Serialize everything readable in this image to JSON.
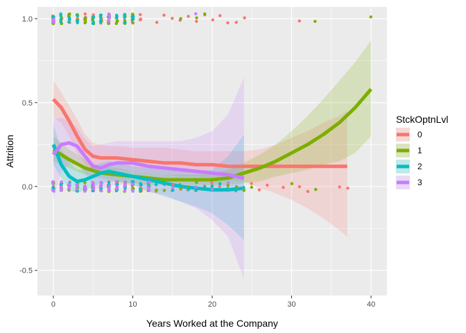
{
  "chart_data": {
    "type": "scatter",
    "xlabel": "Years Worked at the Company",
    "ylabel": "Attrition",
    "xlim": [
      -2,
      42
    ],
    "ylim": [
      -0.65,
      1.07
    ],
    "x_ticks": [
      0,
      10,
      20,
      30,
      40
    ],
    "y_ticks": [
      -0.5,
      0.0,
      0.5,
      1.0
    ],
    "x_tick_labels": [
      "0",
      "10",
      "20",
      "30",
      "40"
    ],
    "y_tick_labels": [
      "-0.5",
      "0.0",
      "0.5",
      "1.0"
    ],
    "grid": true,
    "background": "#EBEBEB",
    "legend": {
      "title": "StckOptnLvl",
      "position": "right",
      "entries": [
        "0",
        "1",
        "2",
        "3"
      ]
    },
    "series": [
      {
        "name": "0",
        "color": "#F8766D",
        "points_y1": [
          0,
          1,
          2,
          3,
          4,
          5,
          6,
          7,
          8,
          9,
          10,
          11,
          13,
          14,
          15,
          16,
          17,
          18,
          19,
          20,
          21,
          22,
          23,
          24,
          31
        ],
        "points_y0": [
          0,
          1,
          2,
          3,
          4,
          5,
          6,
          7,
          8,
          9,
          10,
          11,
          12,
          13,
          14,
          15,
          16,
          17,
          18,
          19,
          20,
          21,
          22,
          23,
          24,
          25,
          26,
          27,
          29,
          31,
          32,
          36,
          37
        ],
        "smooth_x": [
          0,
          1,
          2,
          3,
          4,
          5,
          6,
          7,
          8,
          10,
          12,
          14,
          16,
          18,
          20,
          22,
          24,
          26,
          28,
          30,
          32,
          34,
          36,
          37
        ],
        "smooth_y": [
          0.52,
          0.47,
          0.39,
          0.3,
          0.22,
          0.18,
          0.17,
          0.17,
          0.17,
          0.16,
          0.15,
          0.14,
          0.14,
          0.13,
          0.13,
          0.12,
          0.12,
          0.12,
          0.12,
          0.12,
          0.12,
          0.12,
          0.12,
          0.12
        ],
        "ci_upper": [
          0.63,
          0.56,
          0.48,
          0.4,
          0.31,
          0.26,
          0.25,
          0.24,
          0.24,
          0.23,
          0.23,
          0.23,
          0.22,
          0.21,
          0.21,
          0.21,
          0.21,
          0.22,
          0.25,
          0.29,
          0.33,
          0.38,
          0.42,
          0.45
        ],
        "ci_lower": [
          0.41,
          0.38,
          0.3,
          0.2,
          0.13,
          0.1,
          0.09,
          0.1,
          0.1,
          0.09,
          0.08,
          0.07,
          0.06,
          0.06,
          0.05,
          0.04,
          0.03,
          -0.01,
          -0.04,
          -0.08,
          -0.13,
          -0.19,
          -0.26,
          -0.3
        ]
      },
      {
        "name": "1",
        "color": "#7CAE00",
        "points_y1": [
          0,
          1,
          2,
          3,
          4,
          5,
          6,
          7,
          8,
          9,
          10,
          16,
          18,
          19,
          33,
          40
        ],
        "points_y0": [
          0,
          1,
          2,
          3,
          4,
          5,
          6,
          7,
          8,
          9,
          10,
          11,
          12,
          13,
          14,
          15,
          16,
          17,
          18,
          19,
          20,
          21,
          22,
          23,
          24,
          25,
          30,
          33
        ],
        "smooth_x": [
          0,
          2,
          4,
          6,
          8,
          10,
          12,
          14,
          16,
          18,
          20,
          22,
          24,
          26,
          28,
          30,
          32,
          34,
          36,
          38,
          40
        ],
        "smooth_y": [
          0.22,
          0.16,
          0.11,
          0.08,
          0.07,
          0.06,
          0.05,
          0.04,
          0.04,
          0.04,
          0.04,
          0.05,
          0.08,
          0.11,
          0.15,
          0.2,
          0.25,
          0.31,
          0.38,
          0.47,
          0.58
        ],
        "ci_upper": [
          0.3,
          0.22,
          0.16,
          0.12,
          0.11,
          0.09,
          0.08,
          0.07,
          0.07,
          0.07,
          0.08,
          0.1,
          0.14,
          0.19,
          0.25,
          0.33,
          0.42,
          0.52,
          0.63,
          0.74,
          0.87
        ],
        "ci_lower": [
          0.15,
          0.11,
          0.07,
          0.05,
          0.03,
          0.02,
          0.01,
          0.01,
          0.01,
          0.01,
          0.01,
          0.01,
          0.02,
          0.03,
          0.06,
          0.08,
          0.1,
          0.13,
          0.15,
          0.2,
          0.3
        ]
      },
      {
        "name": "2",
        "color": "#00BFC4",
        "points_y1": [
          0,
          1,
          2,
          3,
          5,
          6,
          7,
          8,
          9,
          10
        ],
        "points_y0": [
          0,
          1,
          2,
          3,
          4,
          5,
          6,
          7,
          8,
          9,
          10,
          11,
          12,
          13,
          14,
          15,
          16,
          17,
          18,
          19,
          20,
          21,
          22,
          23,
          24
        ],
        "smooth_x": [
          0,
          1,
          2,
          3,
          4,
          5,
          6,
          7,
          8,
          10,
          12,
          14,
          16,
          18,
          20,
          22,
          24
        ],
        "smooth_y": [
          0.25,
          0.13,
          0.06,
          0.03,
          0.04,
          0.06,
          0.08,
          0.09,
          0.08,
          0.06,
          0.04,
          0.02,
          0.0,
          -0.01,
          -0.02,
          -0.02,
          -0.01
        ],
        "ci_upper": [
          0.37,
          0.22,
          0.14,
          0.1,
          0.1,
          0.12,
          0.14,
          0.15,
          0.14,
          0.12,
          0.11,
          0.1,
          0.09,
          0.09,
          0.1,
          0.18,
          0.31
        ],
        "ci_lower": [
          0.13,
          0.05,
          -0.02,
          -0.04,
          -0.02,
          0.0,
          0.02,
          0.03,
          0.03,
          0.01,
          -0.03,
          -0.06,
          -0.09,
          -0.12,
          -0.16,
          -0.23,
          -0.32
        ]
      },
      {
        "name": "3",
        "color": "#C77CFF",
        "points_y1": [
          0,
          7,
          18
        ],
        "points_y0": [
          0,
          1,
          2,
          3,
          4,
          5,
          6,
          7,
          8,
          9,
          10,
          12,
          15,
          18,
          20,
          22
        ],
        "smooth_x": [
          0,
          1,
          2,
          3,
          4,
          5,
          6,
          7,
          8,
          9,
          10,
          12,
          14,
          16,
          18,
          20,
          22,
          24
        ],
        "smooth_y": [
          0.19,
          0.25,
          0.26,
          0.24,
          0.18,
          0.12,
          0.11,
          0.13,
          0.14,
          0.14,
          0.14,
          0.12,
          0.11,
          0.1,
          0.09,
          0.08,
          0.07,
          0.05
        ],
        "ci_upper": [
          0.4,
          0.41,
          0.39,
          0.35,
          0.28,
          0.24,
          0.25,
          0.26,
          0.27,
          0.27,
          0.27,
          0.27,
          0.27,
          0.27,
          0.29,
          0.33,
          0.43,
          0.65
        ],
        "ci_lower": [
          -0.08,
          0.09,
          0.13,
          0.13,
          0.08,
          0.0,
          -0.02,
          0.0,
          0.01,
          0.01,
          0.01,
          -0.03,
          -0.05,
          -0.09,
          -0.13,
          -0.2,
          -0.3,
          -0.55
        ]
      }
    ]
  }
}
